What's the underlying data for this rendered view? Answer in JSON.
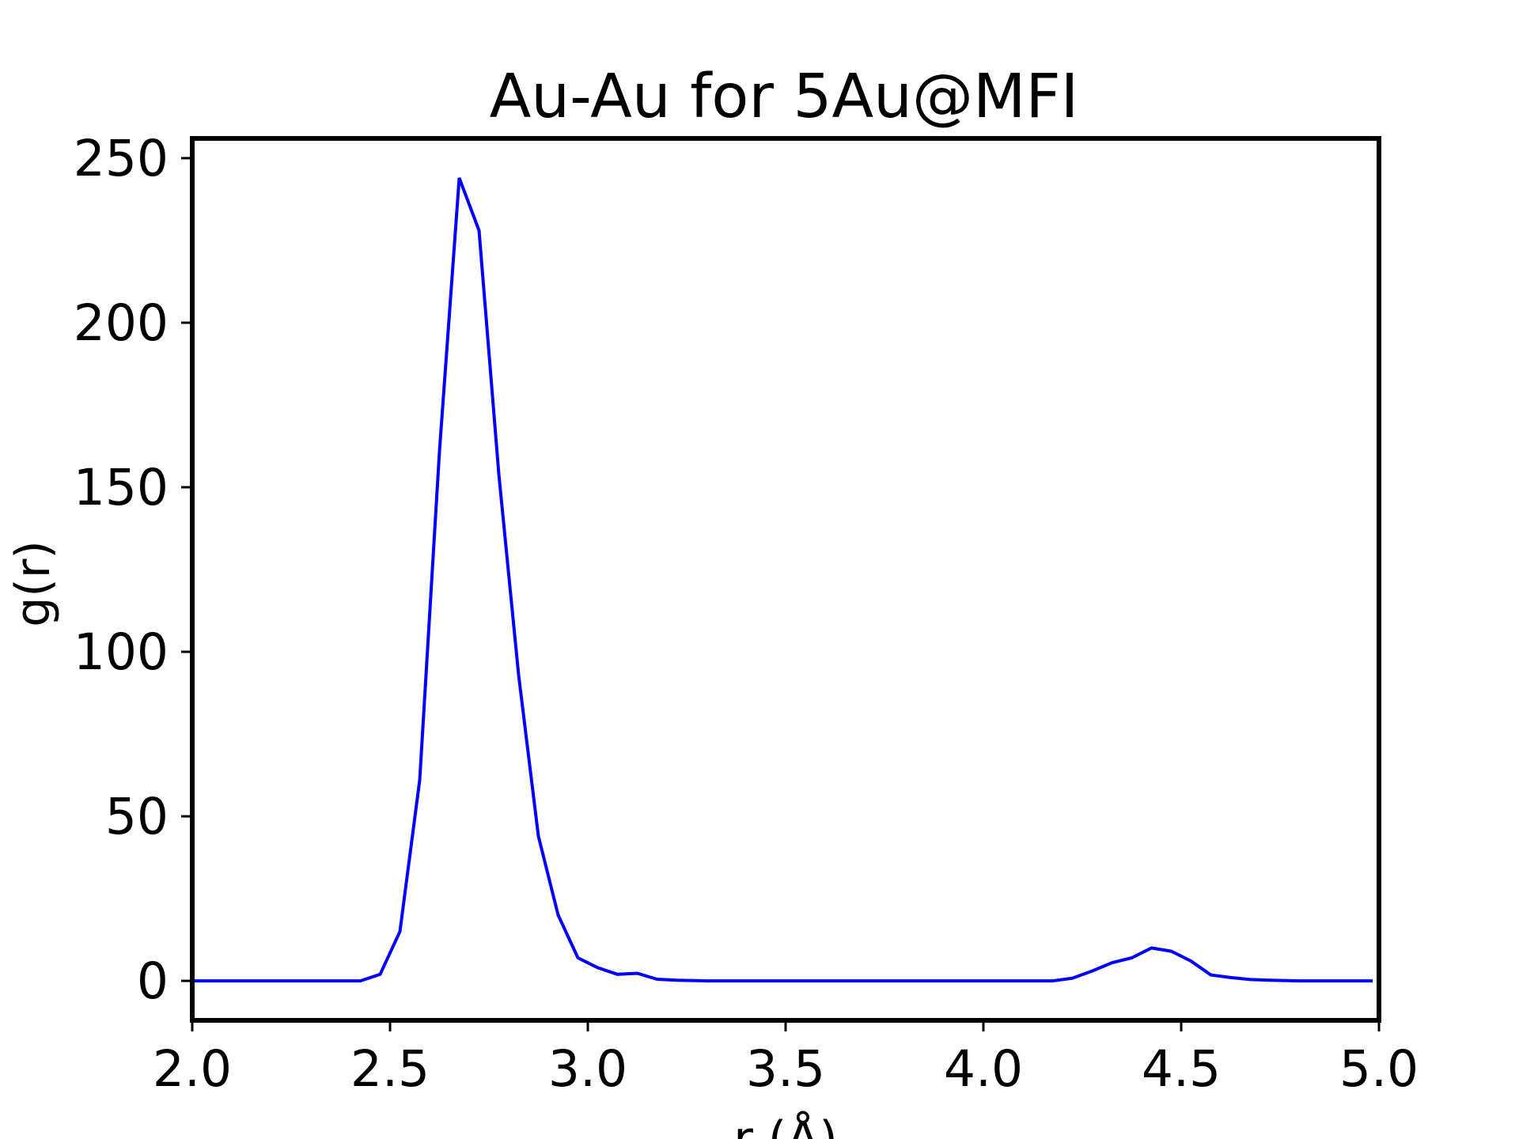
{
  "chart_data": {
    "type": "line",
    "title": "Au-Au for 5Au@MFI",
    "xlabel": "r (Å)",
    "ylabel": "g(r)",
    "xlim": [
      2.0,
      5.0
    ],
    "ylim": [
      -12,
      256
    ],
    "xticks": [
      2.0,
      2.5,
      3.0,
      3.5,
      4.0,
      4.5,
      5.0
    ],
    "xtick_labels": [
      "2.0",
      "2.5",
      "3.0",
      "3.5",
      "4.0",
      "4.5",
      "5.0"
    ],
    "yticks": [
      0,
      50,
      100,
      150,
      200,
      250
    ],
    "ytick_labels": [
      "0",
      "50",
      "100",
      "150",
      "200",
      "250"
    ],
    "grid": false,
    "legend": "none",
    "series": [
      {
        "color": "#0000ff",
        "x": [
          2.0,
          2.05,
          2.1,
          2.15,
          2.2,
          2.25,
          2.3,
          2.35,
          2.4,
          2.425,
          2.475,
          2.525,
          2.575,
          2.625,
          2.675,
          2.725,
          2.775,
          2.825,
          2.875,
          2.925,
          2.975,
          3.025,
          3.075,
          3.125,
          3.175,
          3.225,
          3.3,
          3.4,
          3.5,
          3.6,
          3.7,
          3.8,
          3.9,
          4.0,
          4.1,
          4.175,
          4.225,
          4.275,
          4.325,
          4.375,
          4.425,
          4.475,
          4.525,
          4.575,
          4.625,
          4.675,
          4.725,
          4.8,
          4.9,
          4.98
        ],
        "y": [
          0,
          0,
          0,
          0,
          0,
          0,
          0,
          0,
          0,
          0,
          2,
          15,
          61,
          161,
          244,
          228,
          154,
          93,
          44,
          20,
          7,
          4,
          2,
          2.3,
          0.5,
          0.2,
          0,
          0,
          0,
          0,
          0,
          0,
          0,
          0,
          0,
          0,
          0.8,
          3,
          5.5,
          7,
          10,
          9,
          6,
          1.8,
          1,
          0.4,
          0.2,
          0,
          0,
          0
        ]
      }
    ]
  }
}
